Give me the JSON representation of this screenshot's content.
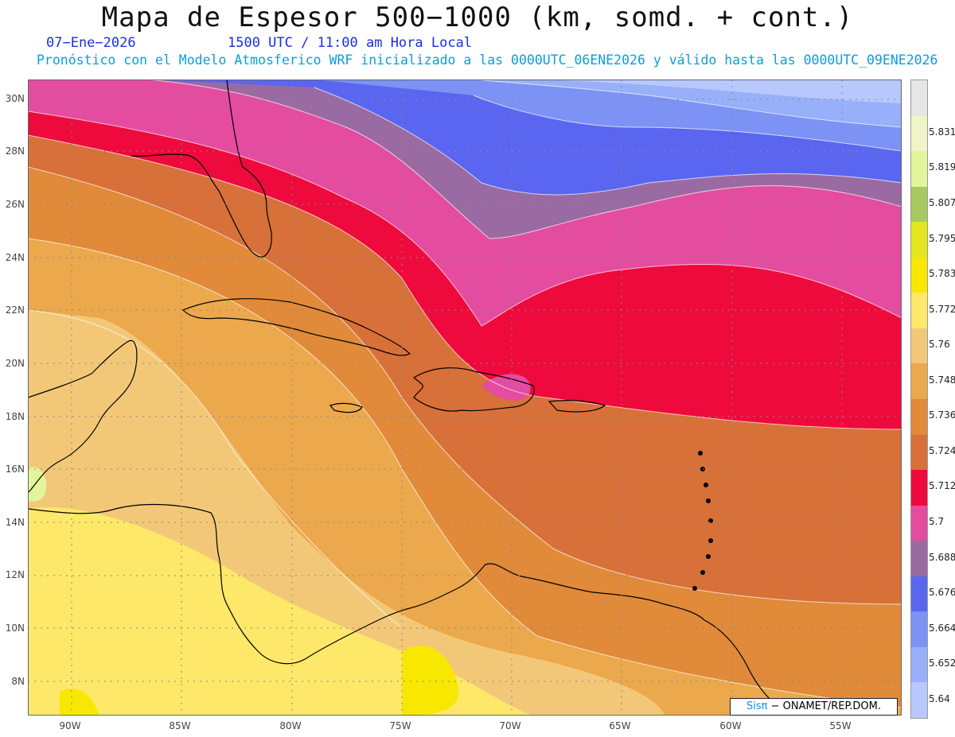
{
  "title": "Mapa de Espesor 500−1000 (km, somd. + cont.)",
  "date": "07−Ene−2026",
  "time": "1500 UTC / 11:00 am Hora Local",
  "description": "Pronóstico con el Modelo Atmosferico WRF inicializado a las 0000UTC_06ENE2026 y válido hasta las  0000UTC_09ENE2026",
  "lat_labels": [
    "30N",
    "28N",
    "26N",
    "24N",
    "22N",
    "20N",
    "18N",
    "16N",
    "14N",
    "12N",
    "10N",
    "8N"
  ],
  "lon_labels": [
    "90W",
    "85W",
    "80W",
    "75W",
    "70W",
    "65W",
    "60W",
    "55W"
  ],
  "colorbar": {
    "labels": [
      "5.831",
      "5.819",
      "5.807",
      "5.795",
      "5.783",
      "5.772",
      "5.76",
      "5.748",
      "5.736",
      "5.724",
      "5.712",
      "5.7",
      "5.688",
      "5.676",
      "5.664",
      "5.652",
      "5.64"
    ],
    "colors": [
      "#e6e6e6",
      "#f0f5c8",
      "#e2f59a",
      "#a8c860",
      "#e2e61e",
      "#f8e800",
      "#fde86a",
      "#f2c878",
      "#eca84c",
      "#e08a3a",
      "#d8703a",
      "#ee0a3c",
      "#e44ca0",
      "#9a6aa2",
      "#5a66f0",
      "#7c92f4",
      "#98b0fa",
      "#b8c8fc"
    ]
  },
  "colors": {
    "title": "#111111",
    "date": "#1a2fe0",
    "description": "#0a9de0"
  },
  "credit": {
    "brand": "Sisπ",
    "text": " − ONAMET/REP.DOM."
  }
}
